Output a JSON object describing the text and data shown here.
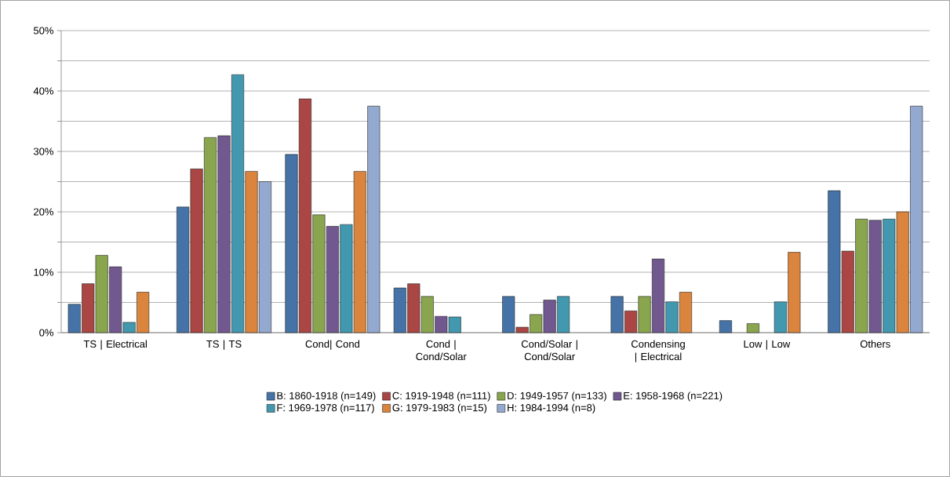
{
  "chart_data": {
    "type": "bar",
    "categories": [
      "TS | Electrical",
      "TS | TS",
      "Cond| Cond",
      "Cond | Cond/Solar",
      "Cond/Solar | Cond/Solar",
      "Condensing | Electrical",
      "Low | Low",
      "Others"
    ],
    "series": [
      {
        "name": "B: 1860-1918 (n=149)",
        "color": "#4572a7",
        "values": [
          4.7,
          20.8,
          29.5,
          7.4,
          6.0,
          6.0,
          2.0,
          23.5
        ]
      },
      {
        "name": "C: 1919-1948 (n=111)",
        "color": "#aa4643",
        "values": [
          8.1,
          27.1,
          38.7,
          8.1,
          0.9,
          3.6,
          null,
          13.5
        ]
      },
      {
        "name": "D: 1949-1957 (n=133)",
        "color": "#89a54e",
        "values": [
          12.8,
          32.3,
          19.5,
          6.0,
          3.0,
          6.0,
          1.5,
          18.8
        ]
      },
      {
        "name": "E: 1958-1968 (n=221)",
        "color": "#71588f",
        "values": [
          10.9,
          32.6,
          17.6,
          2.7,
          5.4,
          12.2,
          null,
          18.6
        ]
      },
      {
        "name": "F: 1969-1978 (n=117)",
        "color": "#4198af",
        "values": [
          1.7,
          42.7,
          17.9,
          2.6,
          6.0,
          5.1,
          5.1,
          18.8
        ]
      },
      {
        "name": "G: 1979-1983 (n=15)",
        "color": "#db843d",
        "values": [
          6.7,
          26.7,
          26.7,
          null,
          null,
          6.7,
          13.3,
          20.0
        ]
      },
      {
        "name": "H: 1984-1994 (n=8)",
        "color": "#93a9cf",
        "values": [
          null,
          25.0,
          37.5,
          null,
          null,
          null,
          null,
          37.5
        ]
      }
    ],
    "ylim": [
      0,
      50
    ],
    "yticks": [
      {
        "value": 0,
        "label": "0%"
      },
      {
        "value": 5,
        "label": null
      },
      {
        "value": 10,
        "label": "10%"
      },
      {
        "value": 15,
        "label": null
      },
      {
        "value": 20,
        "label": "20%"
      },
      {
        "value": 25,
        "label": null
      },
      {
        "value": 30,
        "label": "30%"
      },
      {
        "value": 35,
        "label": null
      },
      {
        "value": 40,
        "label": "40%"
      },
      {
        "value": 45,
        "label": null
      },
      {
        "value": 50,
        "label": "50%"
      }
    ],
    "grid": "y",
    "legend": "bottom"
  }
}
